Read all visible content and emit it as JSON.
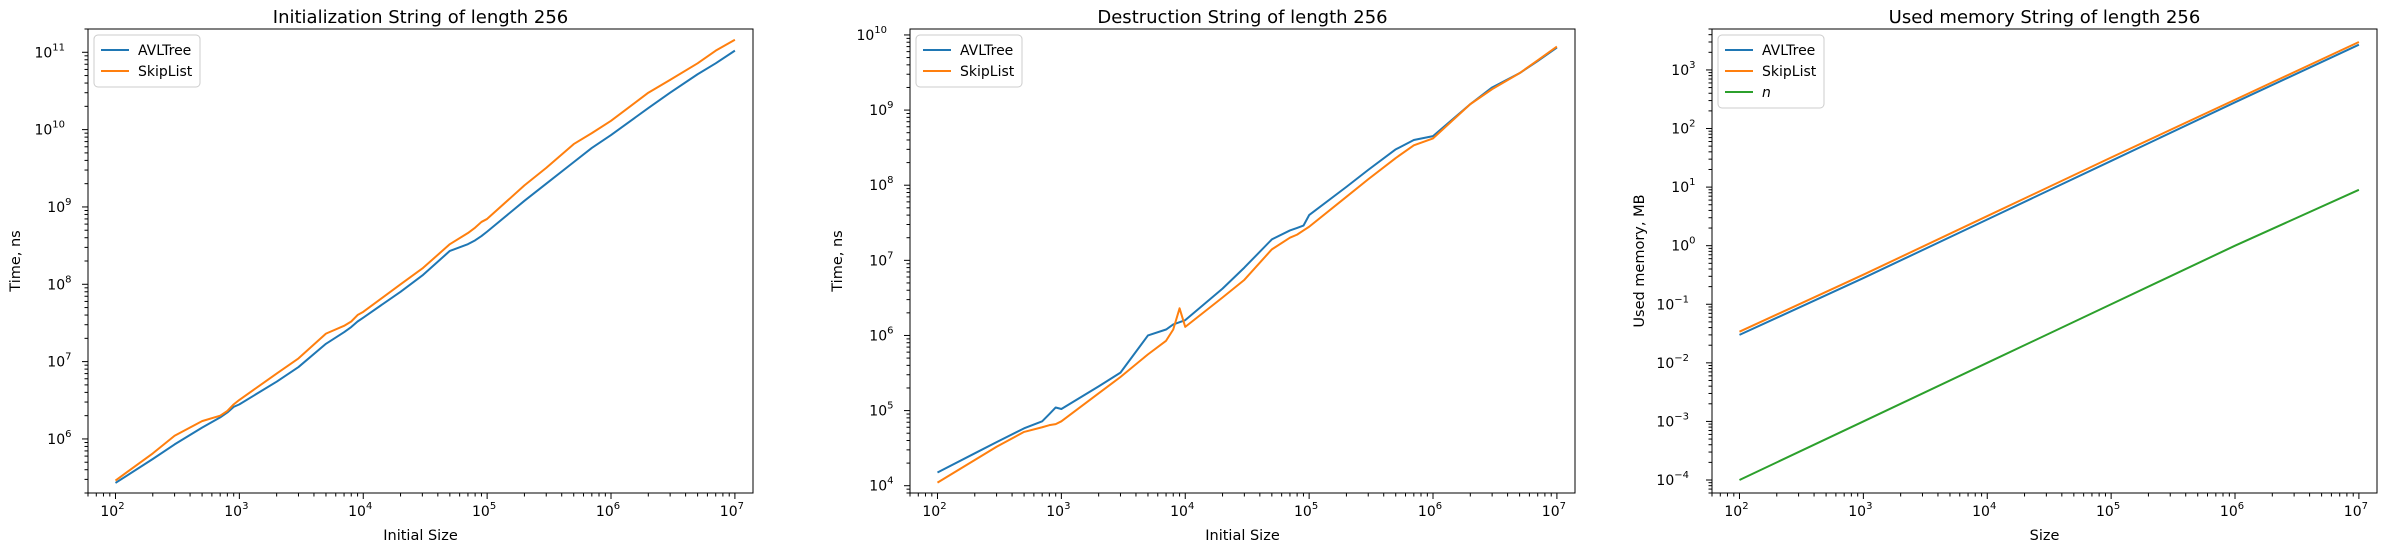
{
  "chart_data": [
    {
      "type": "line",
      "title": "Initialization String of length 256",
      "xlabel": "Initial Size",
      "ylabel": "Time, ns",
      "xscale": "log",
      "yscale": "log",
      "xlim": [
        60,
        14000000
      ],
      "ylim": [
        200000,
        200000000000
      ],
      "xticks": [
        {
          "value": 100,
          "base": "10",
          "exp": "2"
        },
        {
          "value": 1000,
          "base": "10",
          "exp": "3"
        },
        {
          "value": 10000,
          "base": "10",
          "exp": "4"
        },
        {
          "value": 100000,
          "base": "10",
          "exp": "5"
        },
        {
          "value": 1000000,
          "base": "10",
          "exp": "6"
        },
        {
          "value": 10000000,
          "base": "10",
          "exp": "7"
        }
      ],
      "yticks": [
        {
          "value": 1000000,
          "base": "10",
          "exp": "6"
        },
        {
          "value": 10000000,
          "base": "10",
          "exp": "7"
        },
        {
          "value": 100000000,
          "base": "10",
          "exp": "8"
        },
        {
          "value": 1000000000,
          "base": "10",
          "exp": "9"
        },
        {
          "value": 10000000000,
          "base": "10",
          "exp": "10"
        },
        {
          "value": 100000000000,
          "base": "10",
          "exp": "11"
        }
      ],
      "legend": "upper-left",
      "series": [
        {
          "name": "AVLTree",
          "color": "#1f77b4",
          "italic": false,
          "x": [
            100,
            200,
            300,
            500,
            700,
            800,
            900,
            1000,
            2000,
            3000,
            5000,
            7000,
            8000,
            9000,
            10000,
            20000,
            30000,
            50000,
            70000,
            80000,
            90000,
            100000,
            200000,
            300000,
            500000,
            700000,
            1000000,
            2000000,
            3000000,
            5000000,
            7000000,
            10000000
          ],
          "y": [
            270000,
            550000,
            850000,
            1400000,
            1900000,
            2200000,
            2600000,
            2800000,
            5500000,
            8500000,
            17000000,
            24000000,
            28000000,
            33000000,
            37000000,
            80000000,
            130000000,
            270000000,
            330000000,
            370000000,
            420000000,
            480000000,
            1200000000,
            2000000000,
            3800000000,
            5800000000,
            8500000000,
            19000000000,
            30000000000,
            52000000000,
            72000000000,
            105000000000
          ]
        },
        {
          "name": "SkipList",
          "color": "#ff7f0e",
          "italic": false,
          "x": [
            100,
            200,
            300,
            500,
            700,
            800,
            900,
            1000,
            2000,
            3000,
            5000,
            7000,
            8000,
            9000,
            10000,
            20000,
            30000,
            50000,
            70000,
            80000,
            90000,
            100000,
            200000,
            300000,
            500000,
            700000,
            1000000,
            2000000,
            3000000,
            5000000,
            7000000,
            10000000
          ],
          "y": [
            290000,
            650000,
            1100000,
            1700000,
            2000000,
            2300000,
            2800000,
            3200000,
            7000000,
            11000000,
            23000000,
            29000000,
            33000000,
            40000000,
            44000000,
            100000000,
            160000000,
            330000000,
            460000000,
            540000000,
            640000000,
            700000000,
            1900000000,
            3200000000,
            6500000000,
            9000000000,
            13000000000,
            30000000000,
            44000000000,
            72000000000,
            105000000000,
            145000000000
          ]
        }
      ]
    },
    {
      "type": "line",
      "title": "Destruction String of length 256",
      "xlabel": "Initial Size",
      "ylabel": "Time, ns",
      "xscale": "log",
      "yscale": "log",
      "xlim": [
        60,
        14000000
      ],
      "ylim": [
        8000,
        12000000000
      ],
      "xticks": [
        {
          "value": 100,
          "base": "10",
          "exp": "2"
        },
        {
          "value": 1000,
          "base": "10",
          "exp": "3"
        },
        {
          "value": 10000,
          "base": "10",
          "exp": "4"
        },
        {
          "value": 100000,
          "base": "10",
          "exp": "5"
        },
        {
          "value": 1000000,
          "base": "10",
          "exp": "6"
        },
        {
          "value": 10000000,
          "base": "10",
          "exp": "7"
        }
      ],
      "yticks": [
        {
          "value": 10000,
          "base": "10",
          "exp": "4"
        },
        {
          "value": 100000,
          "base": "10",
          "exp": "5"
        },
        {
          "value": 1000000,
          "base": "10",
          "exp": "6"
        },
        {
          "value": 10000000,
          "base": "10",
          "exp": "7"
        },
        {
          "value": 100000000,
          "base": "10",
          "exp": "8"
        },
        {
          "value": 1000000000,
          "base": "10",
          "exp": "9"
        },
        {
          "value": 10000000000,
          "base": "10",
          "exp": "10"
        }
      ],
      "legend": "upper-left",
      "series": [
        {
          "name": "AVLTree",
          "color": "#1f77b4",
          "italic": false,
          "x": [
            100,
            200,
            300,
            500,
            700,
            800,
            900,
            1000,
            2000,
            3000,
            5000,
            7000,
            8000,
            9000,
            10000,
            20000,
            30000,
            50000,
            70000,
            80000,
            90000,
            100000,
            200000,
            300000,
            500000,
            700000,
            1000000,
            2000000,
            3000000,
            5000000,
            7000000,
            10000000
          ],
          "y": [
            15000,
            27000,
            38000,
            58000,
            72000,
            90000,
            110000,
            105000,
            210000,
            320000,
            1000000,
            1200000,
            1400000,
            1500000,
            1600000,
            4200000,
            8000000,
            19000000,
            25000000,
            27000000,
            29000000,
            40000000,
            95000000,
            160000000,
            300000000,
            400000000,
            450000000,
            1200000000,
            2000000000,
            3100000000,
            4500000000,
            6800000000
          ]
        },
        {
          "name": "SkipList",
          "color": "#ff7f0e",
          "italic": false,
          "x": [
            100,
            200,
            300,
            500,
            700,
            800,
            900,
            1000,
            2000,
            3000,
            5000,
            7000,
            8000,
            9000,
            10000,
            20000,
            30000,
            50000,
            70000,
            80000,
            90000,
            100000,
            200000,
            300000,
            500000,
            700000,
            1000000,
            2000000,
            3000000,
            5000000,
            7000000,
            10000000
          ],
          "y": [
            11000,
            22000,
            33000,
            52000,
            60000,
            64000,
            66000,
            72000,
            170000,
            280000,
            560000,
            850000,
            1200000,
            2300000,
            1300000,
            3200000,
            5500000,
            14000000,
            20000000,
            22000000,
            25000000,
            28000000,
            70000000,
            120000000,
            230000000,
            340000000,
            420000000,
            1200000000,
            1900000000,
            3100000000,
            4600000000,
            7000000000
          ]
        }
      ]
    },
    {
      "type": "line",
      "title": "Used memory String of length 256",
      "xlabel": "Size",
      "ylabel": "Used memory, MB",
      "xscale": "log",
      "yscale": "log",
      "xlim": [
        60,
        14000000
      ],
      "ylim": [
        6e-05,
        5000
      ],
      "xticks": [
        {
          "value": 100,
          "base": "10",
          "exp": "2"
        },
        {
          "value": 1000,
          "base": "10",
          "exp": "3"
        },
        {
          "value": 10000,
          "base": "10",
          "exp": "4"
        },
        {
          "value": 100000,
          "base": "10",
          "exp": "5"
        },
        {
          "value": 1000000,
          "base": "10",
          "exp": "6"
        },
        {
          "value": 10000000,
          "base": "10",
          "exp": "7"
        }
      ],
      "yticks": [
        {
          "value": 0.0001,
          "base": "10",
          "exp": "−4"
        },
        {
          "value": 0.001,
          "base": "10",
          "exp": "−3"
        },
        {
          "value": 0.01,
          "base": "10",
          "exp": "−2"
        },
        {
          "value": 0.1,
          "base": "10",
          "exp": "−1"
        },
        {
          "value": 1,
          "base": "10",
          "exp": "0"
        },
        {
          "value": 10,
          "base": "10",
          "exp": "1"
        },
        {
          "value": 100,
          "base": "10",
          "exp": "2"
        },
        {
          "value": 1000,
          "base": "10",
          "exp": "3"
        }
      ],
      "legend": "upper-left",
      "series": [
        {
          "name": "AVLTree",
          "color": "#1f77b4",
          "italic": false,
          "x": [
            100,
            1000,
            10000,
            100000,
            1000000,
            10000000
          ],
          "y": [
            0.03,
            0.28,
            2.8,
            28,
            280,
            2700
          ]
        },
        {
          "name": "SkipList",
          "color": "#ff7f0e",
          "italic": false,
          "x": [
            100,
            1000,
            10000,
            100000,
            1000000,
            10000000
          ],
          "y": [
            0.034,
            0.32,
            3.2,
            32,
            310,
            3000
          ]
        },
        {
          "name": "n",
          "color": "#2ca02c",
          "italic": true,
          "x": [
            100,
            1000,
            10000,
            100000,
            1000000,
            10000000
          ],
          "y": [
            0.0001,
            0.001,
            0.01,
            0.1,
            1,
            9
          ]
        }
      ]
    }
  ]
}
